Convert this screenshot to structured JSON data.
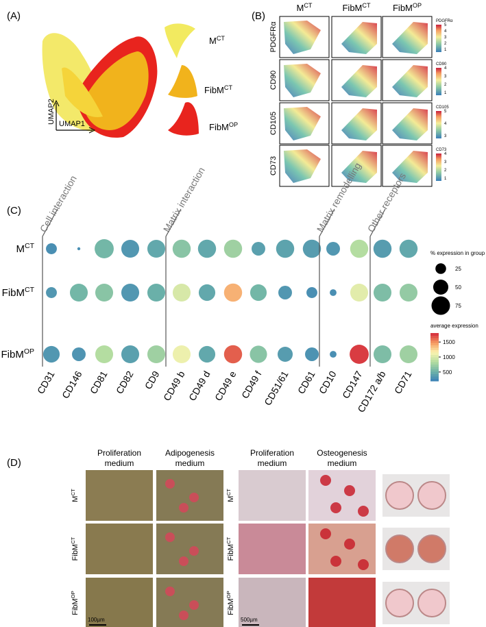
{
  "panel_a": {
    "label": "(A)",
    "x_axis": "UMAP1",
    "y_axis": "UMAP2",
    "groups": [
      {
        "base": "M",
        "sup": "CT"
      },
      {
        "base": "FibM",
        "sup": "CT"
      },
      {
        "base": "FibM",
        "sup": "OP"
      }
    ]
  },
  "panel_b": {
    "label": "(B)",
    "columns": [
      {
        "base": "M",
        "sup": "CT"
      },
      {
        "base": "FibM",
        "sup": "CT"
      },
      {
        "base": "FibM",
        "sup": "OP"
      }
    ],
    "rows": [
      {
        "marker": "PDGFRα",
        "legend_title": "PDGFRα",
        "legend_ticks": [
          1,
          2,
          3,
          4,
          5
        ]
      },
      {
        "marker": "CD90",
        "legend_title": "CD90",
        "legend_ticks": [
          1,
          2,
          3,
          4
        ]
      },
      {
        "marker": "CD105",
        "legend_title": "CD105",
        "legend_ticks": [
          3,
          4,
          5
        ]
      },
      {
        "marker": "CD73",
        "legend_title": "CD73",
        "legend_ticks": [
          1,
          2,
          3,
          4
        ]
      }
    ]
  },
  "chart_data": {
    "type": "dot",
    "title": "(C)",
    "groups": [
      "Cell interaction",
      "Matrix interaction",
      "Matrix remodelling",
      "Other receptors"
    ],
    "categories": [
      "CD31",
      "CD146",
      "CD81",
      "CD82",
      "CD9",
      "CD49 b",
      "CD49 d",
      "CD49 e",
      "CD49 f",
      "CD51/61",
      "CD61",
      "CD10",
      "CD147",
      "CD172 a/b",
      "CD71"
    ],
    "series": [
      {
        "name": {
          "base": "M",
          "sup": "CT"
        },
        "values": [
          26,
          2,
          80,
          70,
          70,
          72,
          72,
          72,
          41,
          72,
          72,
          41,
          72,
          72,
          72
        ],
        "expression": [
          300,
          300,
          550,
          350,
          450,
          650,
          450,
          750,
          400,
          420,
          380,
          350,
          850,
          380,
          450
        ]
      },
      {
        "name": {
          "base": "FibM",
          "sup": "CT"
        },
        "values": [
          26,
          70,
          70,
          70,
          70,
          70,
          60,
          72,
          60,
          41,
          26,
          10,
          70,
          70,
          70
        ],
        "expression": [
          350,
          550,
          650,
          350,
          500,
          1000,
          450,
          1400,
          550,
          350,
          300,
          300,
          1050,
          600,
          700
        ]
      },
      {
        "name": {
          "base": "FibM",
          "sup": "OP"
        },
        "values": [
          60,
          41,
          70,
          70,
          70,
          70,
          60,
          72,
          65,
          50,
          41,
          10,
          80,
          70,
          70
        ],
        "expression": [
          350,
          330,
          850,
          400,
          750,
          1100,
          450,
          1650,
          650,
          380,
          320,
          300,
          1750,
          600,
          750
        ]
      }
    ],
    "size_title": "% expression in group",
    "size_ticks": [
      25,
      50,
      75
    ],
    "color_title": "average expression",
    "color_ticks": [
      500,
      1000,
      1500
    ],
    "clim": [
      200,
      1800
    ],
    "colorscale": [
      "#3a7fb8",
      "#6db3a8",
      "#b2dca0",
      "#fbf4b0",
      "#f59a60",
      "#d42a3c"
    ]
  },
  "panel_d": {
    "label": "(D)",
    "columns": [
      {
        "line1": "Proliferation",
        "line2": "medium"
      },
      {
        "line1": "Adipogenesis",
        "line2": "medium"
      },
      {
        "line1": "Proliferation",
        "line2": "medium"
      },
      {
        "line1": "Osteogenesis",
        "line2": "medium"
      }
    ],
    "rows": [
      {
        "base": "M",
        "sup": "CT"
      },
      {
        "base": "FibM",
        "sup": "CT"
      },
      {
        "base": "FibM",
        "sup": "OP"
      }
    ],
    "scale_bars": [
      "100µm",
      "500µm"
    ]
  }
}
